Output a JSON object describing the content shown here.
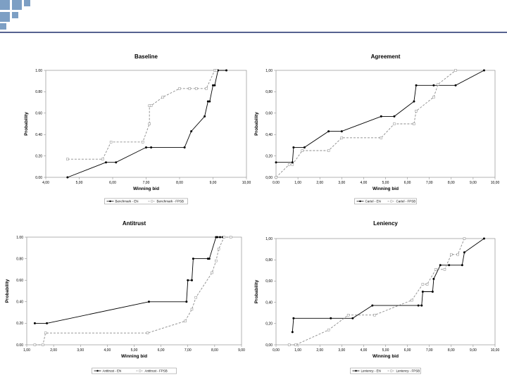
{
  "colors": {
    "deco_square": "#7d9fc4",
    "deco_line": "#1f2f6b",
    "series_solid": "#000000",
    "series_dashed": "#8a8a8a"
  },
  "chart_data": [
    {
      "type": "line",
      "title": "Baseline",
      "xlabel": "Winning bid",
      "ylabel": "Probability",
      "xlim": [
        4,
        10
      ],
      "ylim": [
        0,
        1
      ],
      "xticks": [
        "4,00",
        "5,00",
        "6,00",
        "7,00",
        "8,00",
        "9,00",
        "10,00"
      ],
      "yticks": [
        "0.00",
        "0.20",
        "0.40",
        "0.60",
        "0.80",
        "1.00"
      ],
      "series": [
        {
          "name": "Benchmark - EN",
          "style": "solid",
          "x": [
            4.65,
            5.8,
            6.1,
            7.0,
            7.15,
            8.15,
            8.35,
            8.75,
            8.85,
            8.9,
            9.0,
            9.05,
            9.15,
            9.4
          ],
          "y": [
            0,
            0.14,
            0.14,
            0.28,
            0.28,
            0.28,
            0.43,
            0.57,
            0.71,
            0.71,
            0.86,
            0.86,
            1.0,
            1.0
          ]
        },
        {
          "name": "Benchmark - FPSB",
          "style": "dashed",
          "x": [
            4.65,
            5.7,
            5.95,
            6.9,
            7.1,
            7.1,
            7.15,
            7.5,
            8.0,
            8.3,
            8.5,
            8.8,
            9.05,
            9.1
          ],
          "y": [
            0.17,
            0.17,
            0.33,
            0.33,
            0.5,
            0.67,
            0.67,
            0.75,
            0.83,
            0.83,
            0.83,
            0.83,
            1.0,
            1.0
          ]
        }
      ]
    },
    {
      "type": "line",
      "title": "Agreement",
      "xlabel": "Winning bid",
      "ylabel": "Probability",
      "xlim": [
        0,
        10
      ],
      "ylim": [
        0,
        1
      ],
      "xticks": [
        "0.00",
        "1,00",
        "2,00",
        "3,00",
        "4,00",
        "5,00",
        "6,00",
        "7,00",
        "8,00",
        "9,00",
        "10,00"
      ],
      "yticks": [
        "0,00",
        "0,20",
        "0,40",
        "0,60",
        "0,80",
        "1,00"
      ],
      "series": [
        {
          "name": "Cartel - EN",
          "style": "solid",
          "x": [
            0,
            0.75,
            0.8,
            1.3,
            2.4,
            3.0,
            4.8,
            5.4,
            6.3,
            6.4,
            7.2,
            8.2,
            9.5
          ],
          "y": [
            0.14,
            0.14,
            0.28,
            0.28,
            0.43,
            0.43,
            0.57,
            0.57,
            0.71,
            0.86,
            0.86,
            0.86,
            1.0
          ]
        },
        {
          "name": "Cartel - FPSB",
          "style": "dashed",
          "x": [
            0,
            0.6,
            0.75,
            1.2,
            2.4,
            3.0,
            4.8,
            5.4,
            6.3,
            6.4,
            7.2,
            7.4,
            8.2
          ],
          "y": [
            0,
            0.12,
            0.12,
            0.25,
            0.25,
            0.37,
            0.37,
            0.5,
            0.5,
            0.62,
            0.75,
            0.87,
            1.0
          ]
        }
      ]
    },
    {
      "type": "line",
      "title": "Antitrust",
      "xlabel": "Winning bid",
      "ylabel": "Probability",
      "xlim": [
        1,
        9
      ],
      "ylim": [
        0,
        1
      ],
      "xticks": [
        "1,00",
        "2,00",
        "3,00",
        "4,00",
        "5,00",
        "6,00",
        "7,00",
        "8,00",
        "9,00"
      ],
      "yticks": [
        "0.00",
        "0.20",
        "0.40",
        "0.60",
        "0.80",
        "1.00"
      ],
      "series": [
        {
          "name": "Antitrust - EN",
          "style": "solid",
          "x": [
            1.3,
            1.75,
            5.55,
            6.95,
            7.0,
            7.15,
            7.2,
            7.75,
            7.8,
            8.05,
            8.1,
            8.2,
            8.3
          ],
          "y": [
            0.2,
            0.2,
            0.4,
            0.4,
            0.6,
            0.6,
            0.8,
            0.8,
            0.8,
            1.0,
            1.0,
            1.0,
            1.0
          ]
        },
        {
          "name": "Antitrust - FPSB",
          "style": "dashed",
          "x": [
            1.3,
            1.6,
            1.7,
            5.5,
            6.9,
            7.15,
            7.3,
            7.9,
            8.05,
            8.15,
            8.35,
            8.6
          ],
          "y": [
            0,
            0,
            0.11,
            0.11,
            0.22,
            0.33,
            0.44,
            0.67,
            0.78,
            0.89,
            1.0,
            1.0
          ]
        }
      ]
    },
    {
      "type": "line",
      "title": "Leniency",
      "xlabel": "Winning bid",
      "ylabel": "Probability",
      "xlim": [
        0,
        10
      ],
      "ylim": [
        0,
        1
      ],
      "xticks": [
        "0,00",
        "1,00",
        "2,00",
        "3,00",
        "4,00",
        "5,00",
        "6,00",
        "7,00",
        "8,00",
        "9,00",
        "10,00"
      ],
      "yticks": [
        "0,00",
        "0,20",
        "0,40",
        "0,60",
        "0,80",
        "1,00"
      ],
      "series": [
        {
          "name": "Leniency - EN",
          "style": "solid",
          "x": [
            0.75,
            0.8,
            2.5,
            3.5,
            4.4,
            6.5,
            6.65,
            6.7,
            7.15,
            7.2,
            7.5,
            7.9,
            8.5,
            8.6,
            9.5
          ],
          "y": [
            0.12,
            0.25,
            0.25,
            0.25,
            0.37,
            0.37,
            0.37,
            0.5,
            0.5,
            0.62,
            0.75,
            0.75,
            0.75,
            0.87,
            1.0
          ]
        },
        {
          "name": "Leniency - FPSB",
          "style": "dashed",
          "x": [
            0.6,
            0.9,
            2.4,
            3.3,
            4.5,
            6.2,
            6.7,
            6.9,
            7.3,
            7.7,
            8.0,
            8.3,
            8.6
          ],
          "y": [
            0,
            0,
            0.14,
            0.28,
            0.28,
            0.42,
            0.57,
            0.57,
            0.71,
            0.71,
            0.85,
            0.85,
            1.0
          ]
        }
      ]
    }
  ]
}
